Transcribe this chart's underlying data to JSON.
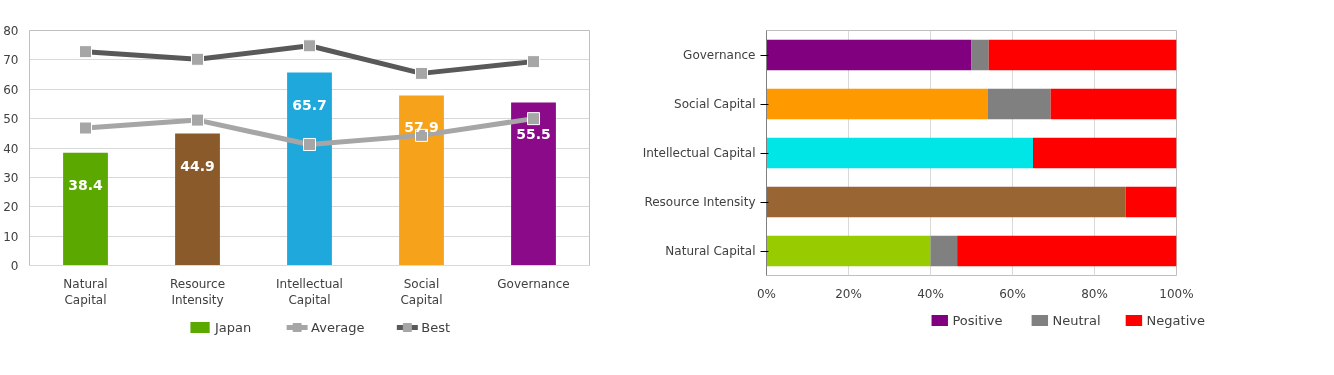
{
  "chart_data": [
    {
      "type": "bar",
      "categories": [
        "Natural Capital",
        "Resource Intensity",
        "Intellectual Capital",
        "Social Capital",
        "Governance"
      ],
      "ylim": [
        0,
        80
      ],
      "yticks": [
        0,
        10,
        20,
        30,
        40,
        50,
        60,
        70,
        80
      ],
      "grid": "y",
      "legend": "bottom",
      "marker": "square",
      "series": [
        {
          "name": "Japan",
          "color": "#5aa800",
          "colors": [
            "#5aa800",
            "#8b5a2b",
            "#1fa8dc",
            "#f7a21b",
            "#8a0a8a"
          ],
          "values": [
            38.4,
            44.9,
            65.7,
            57.9,
            55.5
          ],
          "value_labels": [
            "38.4",
            "44.9",
            "65.7",
            "57.9",
            "55.5"
          ]
        },
        {
          "name": "Average",
          "type": "line",
          "color": "#a6a6a6",
          "values": [
            46.8,
            49.5,
            41.2,
            44.3,
            50.0
          ]
        },
        {
          "name": "Best",
          "type": "line",
          "color": "#595959",
          "values": [
            72.8,
            70.2,
            74.8,
            65.4,
            69.4
          ]
        }
      ]
    },
    {
      "type": "bar",
      "orientation": "horizontal",
      "stacked": true,
      "categories": [
        "Governance",
        "Social Capital",
        "Intellectual Capital",
        "Resource Intensity",
        "Natural Capital"
      ],
      "xlim": [
        0,
        100
      ],
      "xticks": [
        {
          "value": 0,
          "label": "0%"
        },
        {
          "value": 20,
          "label": "20%"
        },
        {
          "value": 40,
          "label": "40%"
        },
        {
          "value": 60,
          "label": "60%"
        },
        {
          "value": 80,
          "label": "80%"
        },
        {
          "value": 100,
          "label": "100%"
        }
      ],
      "grid": "x",
      "legend": "bottom",
      "series": [
        {
          "name": "Positive",
          "color": "#800080",
          "colors": [
            "#800080",
            "#ff9900",
            "#00e5e5",
            "#996633",
            "#99cc00"
          ],
          "values": [
            50.0,
            53.9,
            65.0,
            87.6,
            40.0
          ]
        },
        {
          "name": "Neutral",
          "color": "#808080",
          "values": [
            4.2,
            15.4,
            0,
            0,
            6.5
          ]
        },
        {
          "name": "Negative",
          "color": "#ff0000",
          "values": [
            45.8,
            30.7,
            35.0,
            12.4,
            53.5
          ]
        }
      ]
    }
  ]
}
